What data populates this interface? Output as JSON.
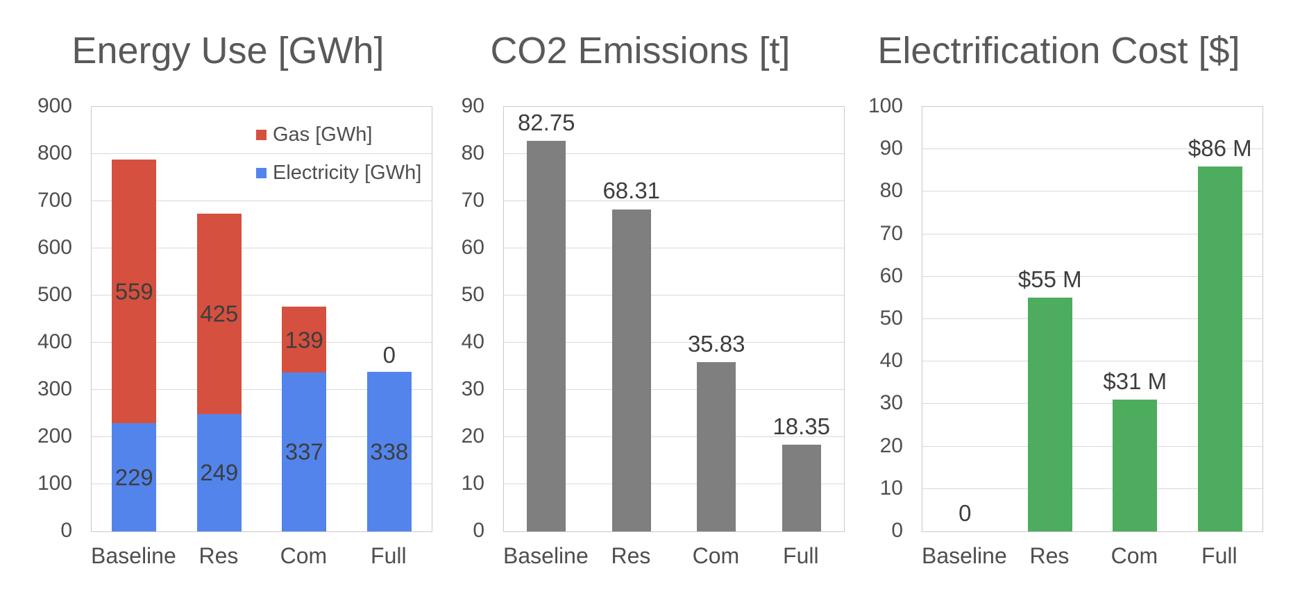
{
  "colors": {
    "gas_red": "#d5503f",
    "electricity_blue": "#5384ec",
    "co2_gray": "#7f7f7f",
    "cost_green": "#4dac5e",
    "gridline": "#d9d9d9",
    "plot_border": "#c9c9c9",
    "title_text": "#595959",
    "tick_text": "#4e4e4e",
    "data_label_text": "#3d3d3d",
    "background": "#ffffff"
  },
  "chart_data": [
    {
      "type": "bar",
      "stacked": true,
      "title": "Energy Use [GWh]",
      "categories": [
        "Baseline",
        "Res",
        "Com",
        "Full"
      ],
      "series": [
        {
          "name": "Electricity [GWh]",
          "color": "#5384ec",
          "values": [
            229,
            249,
            337,
            338
          ],
          "labels": [
            "229",
            "249",
            "337",
            "338"
          ]
        },
        {
          "name": "Gas [GWh]",
          "color": "#d5503f",
          "values": [
            559,
            425,
            139,
            0
          ],
          "labels": [
            "559",
            "425",
            "139",
            "0"
          ]
        }
      ],
      "totals": [
        788,
        674,
        476,
        338
      ],
      "ylim": [
        0,
        900
      ],
      "yticks": [
        0,
        100,
        200,
        300,
        400,
        500,
        600,
        700,
        800,
        900
      ],
      "grid": true,
      "legend": {
        "position": "top-right-inside",
        "entries": [
          {
            "label": "Gas [GWh]",
            "color": "#d5503f"
          },
          {
            "label": "Electricity [GWh]",
            "color": "#5384ec"
          }
        ]
      }
    },
    {
      "type": "bar",
      "stacked": false,
      "title": "CO2 Emissions [t]",
      "categories": [
        "Baseline",
        "Res",
        "Com",
        "Full"
      ],
      "series": [
        {
          "name": "CO2 Emissions [t]",
          "color": "#7f7f7f",
          "values": [
            82.75,
            68.31,
            35.83,
            18.35
          ],
          "labels": [
            "82.75",
            "68.31",
            "35.83",
            "18.35"
          ]
        }
      ],
      "ylim": [
        0,
        90
      ],
      "yticks": [
        0,
        10,
        20,
        30,
        40,
        50,
        60,
        70,
        80,
        90
      ],
      "grid": true,
      "legend": null
    },
    {
      "type": "bar",
      "stacked": false,
      "title": "Electrification Cost [$]",
      "categories": [
        "Baseline",
        "Res",
        "Com",
        "Full"
      ],
      "series": [
        {
          "name": "Electrification Cost [$]",
          "color": "#4dac5e",
          "values": [
            0,
            55,
            31,
            86
          ],
          "labels": [
            "0",
            "$55 M",
            "$31 M",
            "$86 M"
          ]
        }
      ],
      "ylim": [
        0,
        100
      ],
      "yticks": [
        0,
        10,
        20,
        30,
        40,
        50,
        60,
        70,
        80,
        90,
        100
      ],
      "grid": true,
      "legend": null
    }
  ]
}
